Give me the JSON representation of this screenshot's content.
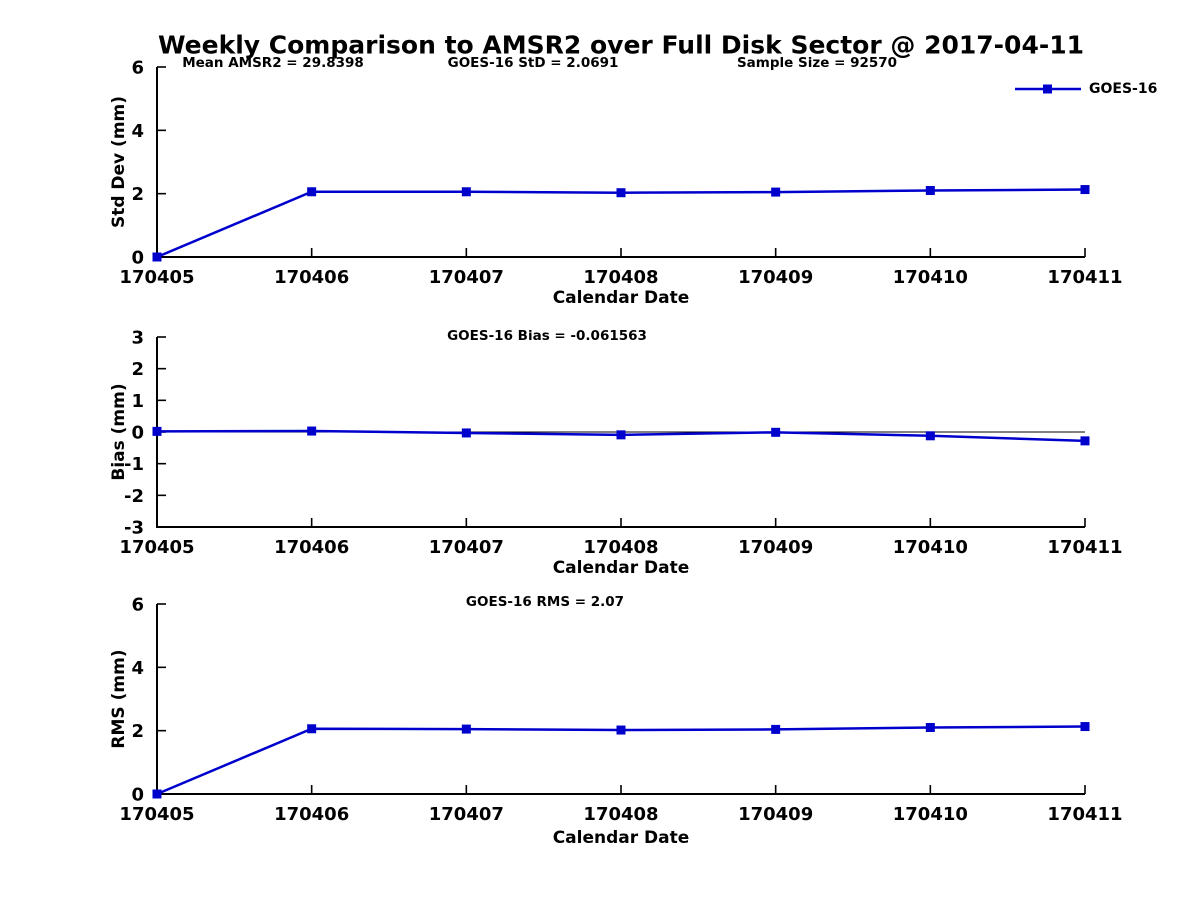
{
  "title": "Weekly Comparison to AMSR2 over Full Disk Sector @ 2017-04-11",
  "stats": {
    "mean_amsr2": "Mean AMSR2 = 29.8398",
    "goes16_std": "GOES-16 StD = 2.0691",
    "sample_size": "Sample Size = 92570"
  },
  "legend": {
    "label": "GOES-16",
    "position": "top-right"
  },
  "colors": {
    "line": "#0000CD",
    "axis": "#000000",
    "zero_line": "#000000",
    "background": "#ffffff"
  },
  "chart_data": [
    {
      "id": "stddev",
      "type": "line",
      "title": "",
      "annotation": "",
      "ylabel": "Std Dev (mm)",
      "xlabel": "Calendar Date",
      "categories": [
        "170405",
        "170406",
        "170407",
        "170408",
        "170409",
        "170410",
        "170411"
      ],
      "series": [
        {
          "name": "GOES-16",
          "values": [
            0,
            2.06,
            2.06,
            2.03,
            2.05,
            2.1,
            2.13
          ]
        }
      ],
      "ylim": [
        0,
        6
      ],
      "yticks": [
        0,
        2,
        4,
        6
      ],
      "grid": false,
      "zero_line": false,
      "marker": "square"
    },
    {
      "id": "bias",
      "type": "line",
      "title": "GOES-16 Bias  = -0.061563",
      "annotation": "GOES-16 Bias  = -0.061563",
      "ylabel": "Bias (mm)",
      "xlabel": "Calendar Date",
      "categories": [
        "170405",
        "170406",
        "170407",
        "170408",
        "170409",
        "170410",
        "170411"
      ],
      "series": [
        {
          "name": "GOES-16",
          "values": [
            0.02,
            0.03,
            -0.03,
            -0.09,
            -0.01,
            -0.12,
            -0.28
          ]
        }
      ],
      "ylim": [
        -3,
        3
      ],
      "yticks": [
        -3,
        -2,
        -1,
        0,
        1,
        2,
        3
      ],
      "grid": false,
      "zero_line": true,
      "marker": "square"
    },
    {
      "id": "rms",
      "type": "line",
      "title": "GOES-16 RMS = 2.07",
      "annotation": "GOES-16 RMS = 2.07",
      "ylabel": "RMS (mm)",
      "xlabel": "Calendar Date",
      "categories": [
        "170405",
        "170406",
        "170407",
        "170408",
        "170409",
        "170410",
        "170411"
      ],
      "series": [
        {
          "name": "GOES-16",
          "values": [
            0,
            2.06,
            2.05,
            2.02,
            2.04,
            2.1,
            2.13
          ]
        }
      ],
      "ylim": [
        0,
        6
      ],
      "yticks": [
        0,
        2,
        4,
        6
      ],
      "grid": false,
      "zero_line": false,
      "marker": "square"
    }
  ]
}
